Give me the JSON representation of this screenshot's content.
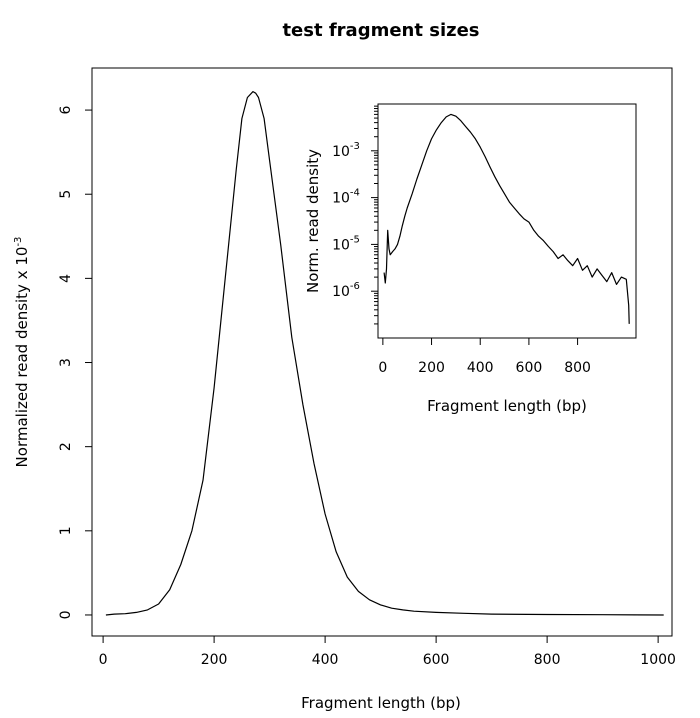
{
  "chart_data": [
    {
      "type": "line",
      "title": "test fragment sizes",
      "xlabel": "Fragment length (bp)",
      "ylabel": "Normalized read density x 10",
      "ylabel_exponent": "-3",
      "xlim": [
        -20,
        1025
      ],
      "ylim": [
        -0.25,
        6.5
      ],
      "x_ticks": [
        "0",
        "200",
        "400",
        "600",
        "800",
        "1000"
      ],
      "y_ticks": [
        "0",
        "1",
        "2",
        "3",
        "4",
        "5",
        "6"
      ],
      "series": [
        {
          "color": "#000000",
          "x": [
            5,
            20,
            40,
            60,
            80,
            100,
            120,
            140,
            160,
            180,
            200,
            220,
            240,
            250,
            260,
            270,
            275,
            280,
            290,
            300,
            320,
            340,
            360,
            380,
            400,
            420,
            440,
            460,
            480,
            500,
            520,
            540,
            560,
            600,
            650,
            700,
            800,
            900,
            1010
          ],
          "y": [
            0.0,
            0.01,
            0.015,
            0.03,
            0.06,
            0.13,
            0.3,
            0.6,
            1.0,
            1.6,
            2.7,
            4.0,
            5.3,
            5.9,
            6.15,
            6.22,
            6.2,
            6.15,
            5.9,
            5.4,
            4.4,
            3.3,
            2.5,
            1.8,
            1.2,
            0.75,
            0.45,
            0.28,
            0.18,
            0.12,
            0.08,
            0.06,
            0.045,
            0.03,
            0.02,
            0.01,
            0.006,
            0.003,
            0.0
          ]
        }
      ]
    },
    {
      "type": "line",
      "title": "",
      "xlabel": "Fragment length (bp)",
      "ylabel": "Norm. read density",
      "log_y": true,
      "xlim": [
        -20,
        1040
      ],
      "ylim": [
        1e-07,
        0.01
      ],
      "x_ticks": [
        "0",
        "200",
        "400",
        "600",
        "800"
      ],
      "y_ticks": [
        {
          "base": "10",
          "exp": "-3",
          "value": 0.001
        },
        {
          "base": "10",
          "exp": "-4",
          "value": 0.0001
        },
        {
          "base": "10",
          "exp": "-5",
          "value": 1e-05
        },
        {
          "base": "10",
          "exp": "-6",
          "value": 1e-06
        }
      ],
      "series": [
        {
          "color": "#000000",
          "x": [
            5,
            10,
            15,
            20,
            25,
            30,
            40,
            50,
            60,
            70,
            80,
            90,
            100,
            120,
            140,
            160,
            180,
            200,
            220,
            240,
            260,
            280,
            300,
            320,
            340,
            360,
            380,
            400,
            420,
            440,
            460,
            480,
            500,
            520,
            540,
            560,
            580,
            600,
            620,
            640,
            660,
            680,
            700,
            720,
            740,
            760,
            780,
            800,
            820,
            840,
            860,
            880,
            900,
            920,
            940,
            960,
            980,
            1000,
            1010,
            1012
          ],
          "y": [
            2.5e-06,
            1.5e-06,
            3e-06,
            2e-05,
            8e-06,
            6e-06,
            7e-06,
            8e-06,
            1e-05,
            1.5e-05,
            2.5e-05,
            4e-05,
            6e-05,
            0.00012,
            0.00025,
            0.0005,
            0.001,
            0.0018,
            0.0028,
            0.004,
            0.0053,
            0.006,
            0.0055,
            0.0044,
            0.0033,
            0.0025,
            0.0018,
            0.0012,
            0.00075,
            0.00045,
            0.00028,
            0.00018,
            0.00012,
            8e-05,
            6e-05,
            4.5e-05,
            3.5e-05,
            3e-05,
            2e-05,
            1.5e-05,
            1.2e-05,
            9e-06,
            7e-06,
            5e-06,
            6e-06,
            4.5e-06,
            3.5e-06,
            5e-06,
            2.8e-06,
            3.5e-06,
            2e-06,
            3e-06,
            2.2e-06,
            1.6e-06,
            2.5e-06,
            1.4e-06,
            2e-06,
            1.8e-06,
            5e-07,
            2e-07
          ]
        }
      ]
    }
  ]
}
